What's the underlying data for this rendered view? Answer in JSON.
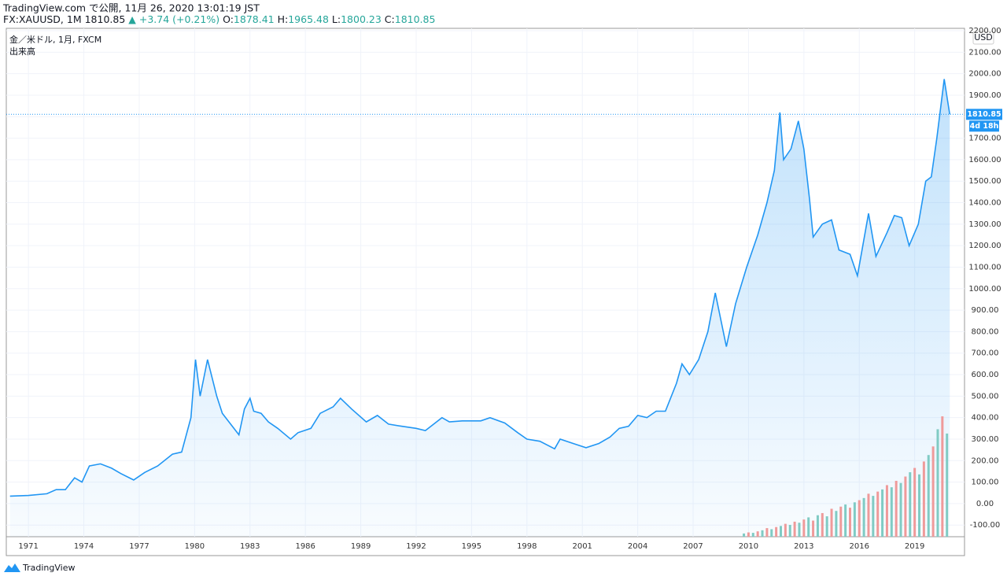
{
  "header": {
    "published": "TradingView.com で公開, 11月 26, 2020 13:01:19 JST",
    "symbol": "FX:XAUUSD, 1M 1810.85",
    "change": "▲ +3.74 (+0.21%)",
    "ohlc": [
      {
        "key": "O:",
        "value": "1878.41"
      },
      {
        "key": "H:",
        "value": "1965.48"
      },
      {
        "key": "L:",
        "value": "1800.23"
      },
      {
        "key": "C:",
        "value": "1810.85"
      }
    ]
  },
  "footer": {
    "brand": "TradingView"
  },
  "chart_data": {
    "type": "line",
    "legend": [
      "金／米ドル, 1月, FXCM",
      "出来高"
    ],
    "currency": "USD",
    "countdown": "4d 18h",
    "xlim": [
      1969.8,
      2021.7
    ],
    "ylim": [
      -154,
      2211
    ],
    "xticks": [
      1971,
      1974,
      1977,
      1980,
      1983,
      1986,
      1989,
      1992,
      1995,
      1998,
      2001,
      2004,
      2007,
      2010,
      2013,
      2016,
      2019
    ],
    "yticks": [
      {
        "value": -100,
        "label": "-100.00"
      },
      {
        "value": 0,
        "label": "0.00"
      },
      {
        "value": 100,
        "label": "100.00"
      },
      {
        "value": 200,
        "label": "200.00"
      },
      {
        "value": 300,
        "label": "300.00"
      },
      {
        "value": 400,
        "label": "400.00"
      },
      {
        "value": 500,
        "label": "500.00"
      },
      {
        "value": 600,
        "label": "600.00"
      },
      {
        "value": 700,
        "label": "700.00"
      },
      {
        "value": 800,
        "label": "800.00"
      },
      {
        "value": 900,
        "label": "900.00"
      },
      {
        "value": 1000,
        "label": "1000.00"
      },
      {
        "value": 1100,
        "label": "1100.00"
      },
      {
        "value": 1200,
        "label": "1200.00"
      },
      {
        "value": 1300,
        "label": "1300.00"
      },
      {
        "value": 1400,
        "label": "1400.00"
      },
      {
        "value": 1500,
        "label": "1500.00"
      },
      {
        "value": 1600,
        "label": "1600.00"
      },
      {
        "value": 1700,
        "label": "1700.00"
      },
      {
        "value": 1800,
        "label": "1800.00"
      },
      {
        "value": 1900,
        "label": "1900.00"
      },
      {
        "value": 2000,
        "label": "2000.00"
      },
      {
        "value": 2100,
        "label": "2100.00"
      },
      {
        "value": 2200,
        "label": "2200.00"
      }
    ],
    "grid": true,
    "series": [
      {
        "name": "金／米ドル",
        "color": "#2196f3",
        "x": [
          1970,
          1971,
          1972,
          1972.5,
          1973,
          1973.5,
          1973.9,
          1974.3,
          1974.9,
          1975.5,
          1976.0,
          1976.7,
          1977.3,
          1978.0,
          1978.8,
          1979.3,
          1979.8,
          1980.05,
          1980.3,
          1980.7,
          1981.2,
          1981.5,
          1982.4,
          1982.7,
          1983.0,
          1983.2,
          1983.6,
          1984.0,
          1984.5,
          1985.2,
          1985.6,
          1986.3,
          1986.8,
          1987.5,
          1987.9,
          1988.5,
          1989.3,
          1989.9,
          1990.5,
          1991.2,
          1992.0,
          1992.5,
          1993.4,
          1993.8,
          1994.5,
          1995.5,
          1996.0,
          1996.8,
          1997.5,
          1998.0,
          1998.7,
          1999.5,
          1999.8,
          2000.5,
          2001.2,
          2001.9,
          2002.5,
          2003.0,
          2003.5,
          2004.0,
          2004.5,
          2005.0,
          2005.5,
          2006.1,
          2006.4,
          2006.8,
          2007.3,
          2007.8,
          2008.2,
          2008.8,
          2009.3,
          2009.9,
          2010.5,
          2011.0,
          2011.4,
          2011.7,
          2011.9,
          2012.3,
          2012.7,
          2013.0,
          2013.3,
          2013.5,
          2014.0,
          2014.5,
          2014.9,
          2015.5,
          2015.9,
          2016.5,
          2016.9,
          2017.5,
          2017.9,
          2018.3,
          2018.7,
          2019.2,
          2019.6,
          2019.9,
          2020.2,
          2020.6,
          2020.9
        ],
        "values": [
          35,
          38,
          46,
          65,
          65,
          120,
          100,
          175,
          185,
          165,
          140,
          110,
          145,
          175,
          230,
          240,
          400,
          670,
          500,
          670,
          500,
          420,
          320,
          440,
          490,
          430,
          420,
          380,
          350,
          300,
          330,
          350,
          420,
          450,
          490,
          440,
          380,
          410,
          370,
          360,
          350,
          340,
          400,
          380,
          385,
          385,
          400,
          375,
          330,
          300,
          290,
          255,
          300,
          280,
          260,
          280,
          310,
          350,
          360,
          410,
          400,
          430,
          430,
          560,
          650,
          600,
          670,
          800,
          980,
          730,
          930,
          1100,
          1250,
          1400,
          1550,
          1820,
          1600,
          1650,
          1780,
          1650,
          1420,
          1240,
          1300,
          1320,
          1180,
          1160,
          1060,
          1350,
          1150,
          1260,
          1340,
          1330,
          1200,
          1300,
          1500,
          1520,
          1700,
          1975,
          1810.85
        ]
      },
      {
        "name": "出来高",
        "colors": [
          "#80cbc4",
          "#ef9a9a"
        ],
        "x": [
          2009.75,
          2010,
          2010.25,
          2010.5,
          2010.75,
          2011,
          2011.25,
          2011.5,
          2011.75,
          2012,
          2012.25,
          2012.5,
          2012.75,
          2013,
          2013.25,
          2013.5,
          2013.75,
          2014,
          2014.25,
          2014.5,
          2014.75,
          2015,
          2015.25,
          2015.5,
          2015.75,
          2016,
          2016.25,
          2016.5,
          2016.75,
          2017,
          2017.25,
          2017.5,
          2017.75,
          2018,
          2018.25,
          2018.5,
          2018.75,
          2019,
          2019.25,
          2019.5,
          2019.75,
          2020,
          2020.25,
          2020.5,
          2020.75
        ],
        "values": [
          15,
          20,
          18,
          25,
          30,
          40,
          35,
          45,
          50,
          60,
          55,
          70,
          65,
          80,
          90,
          75,
          100,
          110,
          95,
          130,
          120,
          140,
          150,
          135,
          160,
          170,
          180,
          200,
          190,
          210,
          220,
          240,
          230,
          260,
          250,
          280,
          300,
          320,
          290,
          350,
          380,
          420,
          500,
          560,
          480
        ]
      }
    ]
  }
}
